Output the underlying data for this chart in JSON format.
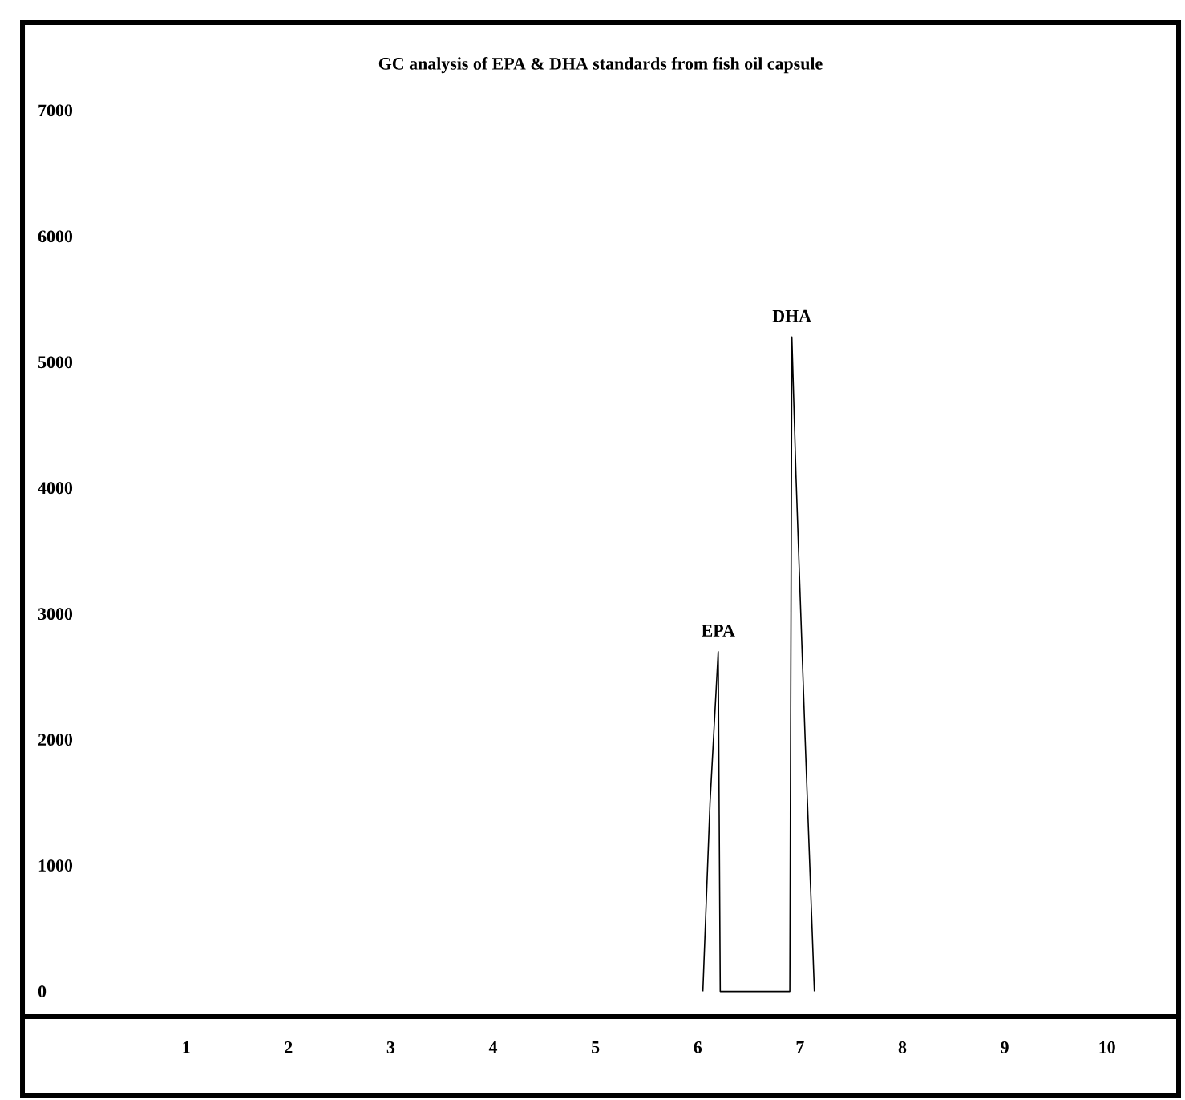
{
  "chart_data": {
    "type": "line",
    "title": "GC analysis of EPA & DHA standards from fish oil capsule",
    "series": [
      {
        "color": "#000000",
        "x": [
          6.05,
          6.12,
          6.2,
          6.22,
          6.9,
          6.92,
          6.96,
          7.05,
          7.14
        ],
        "values": [
          0,
          1500,
          2700,
          0,
          0,
          5200,
          4100,
          2000,
          0
        ]
      }
    ],
    "annotations": [
      {
        "text": "EPA",
        "x": 6.2,
        "y": 2700
      },
      {
        "text": "DHA",
        "x": 6.92,
        "y": 5200
      }
    ],
    "xlim": [
      -0.6,
      10.7
    ],
    "ylim": [
      -200,
      7700
    ],
    "xticks": [
      1,
      2,
      3,
      4,
      5,
      6,
      7,
      8,
      9,
      10
    ],
    "yticks": [
      0,
      1000,
      2000,
      3000,
      4000,
      5000,
      6000,
      7000
    ],
    "marker": "none",
    "line_style": "solid"
  }
}
